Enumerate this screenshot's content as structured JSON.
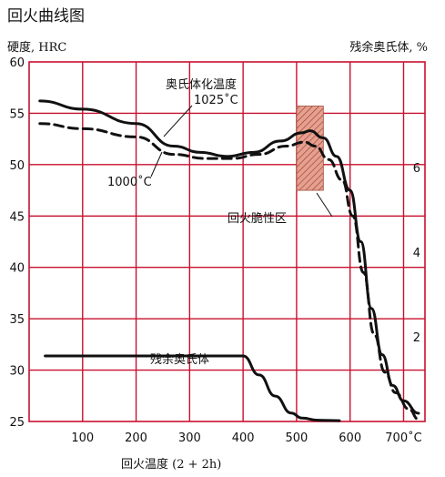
{
  "chart_data": {
    "type": "line",
    "title": "回火曲线图",
    "ylabel": "硬度, HRC",
    "y2label": "残余奥氏体, %",
    "xlabel": "回火温度 (2 + 2h)",
    "xlim": [
      0,
      740
    ],
    "ylim": [
      25,
      60
    ],
    "y2lim": [
      0,
      8.5
    ],
    "grid": true,
    "x_ticks": [
      "100",
      "200",
      "300",
      "400",
      "500",
      "600",
      "700˚C"
    ],
    "x_tick_values": [
      100,
      200,
      300,
      400,
      500,
      600,
      700
    ],
    "y_ticks": [
      "25",
      "30",
      "35",
      "40",
      "45",
      "50",
      "55",
      "60"
    ],
    "y_tick_values": [
      25,
      30,
      35,
      40,
      45,
      50,
      55,
      60
    ],
    "y2_ticks": [
      "2",
      "4",
      "6"
    ],
    "y2_tick_values": [
      2,
      4,
      6
    ],
    "series": [
      {
        "name": "1025˚C",
        "axis": "left",
        "style": "solid",
        "x": [
          20,
          100,
          200,
          270,
          320,
          370,
          420,
          470,
          510,
          525,
          550,
          575,
          600,
          620,
          640,
          660,
          680,
          700,
          728
        ],
        "values": [
          56.2,
          55.4,
          54.0,
          51.8,
          51.2,
          50.8,
          51.2,
          52.3,
          53.1,
          53.3,
          52.6,
          50.8,
          47.5,
          42.5,
          36.0,
          31.5,
          28.5,
          27.0,
          25.8
        ]
      },
      {
        "name": "1000˚C",
        "axis": "left",
        "style": "dashed",
        "x": [
          20,
          100,
          200,
          270,
          330,
          380,
          430,
          480,
          515,
          535,
          560,
          585,
          605,
          625,
          645,
          665,
          685,
          710,
          728
        ],
        "values": [
          54.0,
          53.5,
          52.7,
          51.0,
          50.6,
          50.6,
          51.0,
          51.8,
          52.2,
          51.8,
          50.5,
          48.5,
          45.0,
          39.5,
          33.5,
          29.8,
          27.8,
          26.2,
          25.2
        ]
      },
      {
        "name": "残余奥氏体",
        "axis": "right",
        "style": "solid",
        "x": [
          30,
          100,
          200,
          300,
          400,
          430,
          460,
          490,
          510,
          540,
          580
        ],
        "values": [
          1.55,
          1.55,
          1.55,
          1.55,
          1.55,
          1.1,
          0.6,
          0.2,
          0.08,
          0.03,
          0.02
        ]
      }
    ],
    "temper_brittleness_zone": {
      "x": [
        500,
        550
      ],
      "y": [
        47.5,
        55.7
      ]
    },
    "annotations": {
      "group_label": "奥氏体化温度",
      "temp_1025": "1025˚C",
      "temp_1000": "1000˚C",
      "brittle_label": "回火脆性区",
      "ra_label": "残余奥氏体"
    }
  },
  "colors": {
    "grid": "#c8102e",
    "line": "#111111",
    "hatch_fill": "#e7a08f",
    "hatch_stroke": "#8a3a2a"
  }
}
